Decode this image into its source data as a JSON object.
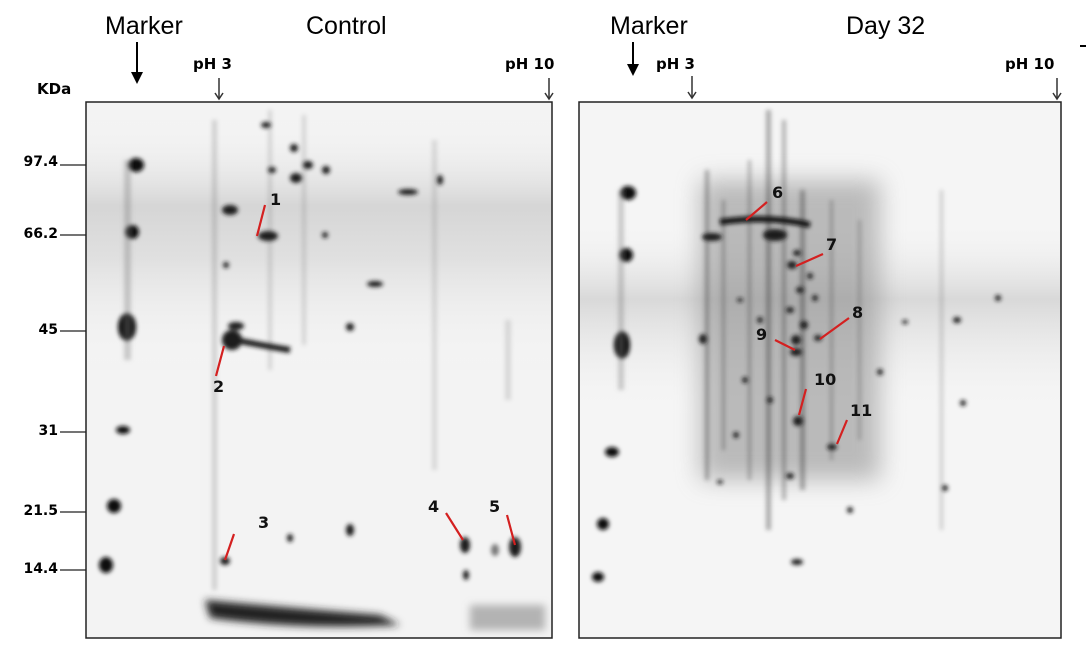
{
  "headers": {
    "marker_left": "Marker",
    "control": "Control",
    "marker_right": "Marker",
    "day32": "Day 32"
  },
  "ph_labels": {
    "left_low": "pH 3",
    "left_high": "pH 10",
    "right_low": "pH 3",
    "right_high": "pH 10"
  },
  "axis_unit": "KDa",
  "mw_markers": [
    "97.4",
    "66.2",
    "45",
    "31",
    "21.5",
    "14.4"
  ],
  "spot_labels": [
    "1",
    "2",
    "3",
    "4",
    "5",
    "6",
    "7",
    "8",
    "9",
    "10",
    "11"
  ],
  "colors": {
    "pointer": "#d42020",
    "frame": "#222222"
  }
}
